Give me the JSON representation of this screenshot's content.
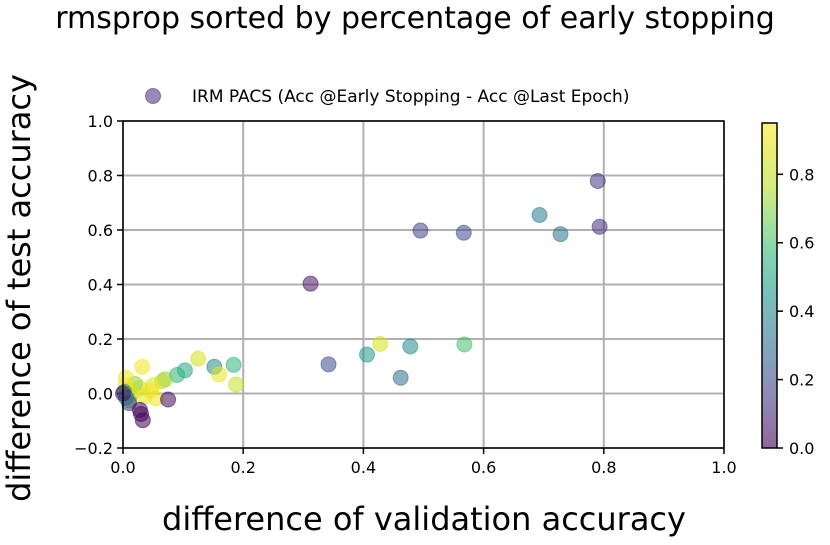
{
  "chart_data": {
    "type": "scatter",
    "title": "rmsprop sorted by percentage of early stopping",
    "xlabel": "difference of validation accuracy",
    "ylabel": "difference of test accuracy",
    "xlim": [
      0.0,
      1.0
    ],
    "ylim": [
      -0.2,
      1.0
    ],
    "xticks": [
      "0.0",
      "0.2",
      "0.4",
      "0.6",
      "0.8",
      "1.0"
    ],
    "yticks": [
      "−0.2",
      "0.0",
      "0.2",
      "0.4",
      "0.6",
      "0.8",
      "1.0"
    ],
    "grid": true,
    "legend_position": "upper-center",
    "colormap": "viridis",
    "marker_alpha": 0.55,
    "colorbar": {
      "range": [
        0.0,
        0.95
      ],
      "tick_values": [
        0.0,
        0.2,
        0.4,
        0.6,
        0.8
      ],
      "tick_labels": [
        "0.0",
        "0.2",
        "0.4",
        "0.6",
        "0.8"
      ]
    },
    "series": [
      {
        "name": "IRM PACS (Acc @Early Stopping - Acc @Last Epoch)",
        "points": [
          {
            "x": 0.79,
            "y": 0.78,
            "c": 0.15
          },
          {
            "x": 0.793,
            "y": 0.612,
            "c": 0.12
          },
          {
            "x": 0.693,
            "y": 0.655,
            "c": 0.35
          },
          {
            "x": 0.728,
            "y": 0.585,
            "c": 0.32
          },
          {
            "x": 0.495,
            "y": 0.598,
            "c": 0.18
          },
          {
            "x": 0.567,
            "y": 0.59,
            "c": 0.2
          },
          {
            "x": 0.312,
            "y": 0.403,
            "c": 0.05
          },
          {
            "x": 0.342,
            "y": 0.107,
            "c": 0.2
          },
          {
            "x": 0.428,
            "y": 0.182,
            "c": 0.85
          },
          {
            "x": 0.406,
            "y": 0.143,
            "c": 0.45
          },
          {
            "x": 0.478,
            "y": 0.173,
            "c": 0.4
          },
          {
            "x": 0.568,
            "y": 0.18,
            "c": 0.6
          },
          {
            "x": 0.462,
            "y": 0.058,
            "c": 0.3
          },
          {
            "x": 0.184,
            "y": 0.105,
            "c": 0.55
          },
          {
            "x": 0.188,
            "y": 0.033,
            "c": 0.8
          },
          {
            "x": 0.152,
            "y": 0.098,
            "c": 0.4
          },
          {
            "x": 0.125,
            "y": 0.128,
            "c": 0.85
          },
          {
            "x": 0.16,
            "y": 0.07,
            "c": 0.9
          },
          {
            "x": 0.103,
            "y": 0.085,
            "c": 0.5
          },
          {
            "x": 0.09,
            "y": 0.068,
            "c": 0.55
          },
          {
            "x": 0.07,
            "y": 0.052,
            "c": 0.7
          },
          {
            "x": 0.065,
            "y": 0.045,
            "c": 0.78
          },
          {
            "x": 0.05,
            "y": 0.03,
            "c": 0.88
          },
          {
            "x": 0.045,
            "y": 0.01,
            "c": 0.92
          },
          {
            "x": 0.035,
            "y": -0.012,
            "c": 0.9
          },
          {
            "x": 0.032,
            "y": 0.098,
            "c": 0.92
          },
          {
            "x": 0.028,
            "y": 0.02,
            "c": 0.88
          },
          {
            "x": 0.02,
            "y": 0.035,
            "c": 0.7
          },
          {
            "x": 0.015,
            "y": 0.0,
            "c": 0.9
          },
          {
            "x": 0.01,
            "y": 0.015,
            "c": 0.8
          },
          {
            "x": 0.005,
            "y": 0.058,
            "c": 0.9
          },
          {
            "x": 0.004,
            "y": 0.03,
            "c": 0.93
          },
          {
            "x": 0.002,
            "y": 0.006,
            "c": 0.35
          },
          {
            "x": 0.01,
            "y": -0.025,
            "c": 0.65
          },
          {
            "x": 0.01,
            "y": -0.035,
            "c": 0.15
          },
          {
            "x": 0.005,
            "y": -0.015,
            "c": 0.3
          },
          {
            "x": 0.055,
            "y": -0.018,
            "c": 0.92
          },
          {
            "x": 0.075,
            "y": -0.022,
            "c": 0.02
          },
          {
            "x": 0.028,
            "y": -0.06,
            "c": 0.01
          },
          {
            "x": 0.03,
            "y": -0.075,
            "c": 0.03
          },
          {
            "x": 0.033,
            "y": -0.098,
            "c": 0.0
          },
          {
            "x": 0.0,
            "y": 0.0,
            "c": 0.05
          }
        ]
      }
    ]
  }
}
